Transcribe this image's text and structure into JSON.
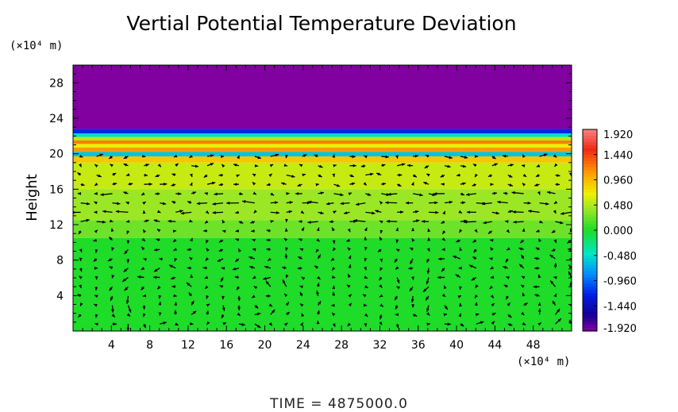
{
  "chart_data": {
    "type": "heatmap",
    "title": "Vertial Potential Temperature Deviation",
    "ylabel": "Height",
    "y_unit": "(×10⁴ m)",
    "x_unit": "(×10⁴ m)",
    "xlim": [
      0,
      52
    ],
    "ylim": [
      0,
      30
    ],
    "x_ticks": [
      4,
      8,
      12,
      16,
      20,
      24,
      28,
      32,
      36,
      40,
      44,
      48
    ],
    "y_ticks": [
      4,
      8,
      12,
      16,
      20,
      24,
      28
    ],
    "colorbar": {
      "min": -1.92,
      "max": 1.92,
      "tick_values": [
        1.92,
        1.44,
        0.96,
        0.48,
        0.0,
        -0.48,
        -0.96,
        -1.44,
        -1.92
      ],
      "tick_labels": [
        "1.920",
        "1.440",
        "0.960",
        "0.480",
        "0.000",
        "-0.480",
        "-0.960",
        "-1.440",
        "-1.920"
      ]
    },
    "field_layers": [
      {
        "y_from": 22.8,
        "y_to": 30.0,
        "value": -1.92
      },
      {
        "y_from": 22.3,
        "y_to": 22.8,
        "value": -1.2
      },
      {
        "y_from": 21.9,
        "y_to": 22.3,
        "value": -0.5
      },
      {
        "y_from": 21.5,
        "y_to": 21.9,
        "value": 0.48
      },
      {
        "y_from": 21.1,
        "y_to": 21.5,
        "value": 1.2
      },
      {
        "y_from": 20.7,
        "y_to": 21.1,
        "value": 0.7
      },
      {
        "y_from": 20.2,
        "y_to": 20.7,
        "value": 1.1
      },
      {
        "y_from": 19.7,
        "y_to": 20.2,
        "value": -0.6
      },
      {
        "y_from": 19.0,
        "y_to": 19.7,
        "value": 0.9
      },
      {
        "y_from": 16.0,
        "y_to": 19.0,
        "value": 0.55
      },
      {
        "y_from": 12.5,
        "y_to": 16.0,
        "value": 0.4
      },
      {
        "y_from": 10.5,
        "y_to": 12.5,
        "value": 0.25
      },
      {
        "y_from": 0.0,
        "y_to": 10.5,
        "value": 0.0
      }
    ],
    "vortex_centers": [
      {
        "x": 9.0,
        "y": 3.2
      },
      {
        "x": 19.5,
        "y": 3.2
      },
      {
        "x": 39.5,
        "y": 3.5
      },
      {
        "x": 47.0,
        "y": 3.2
      }
    ],
    "vector_field": "wind vectors plotted over the shaded field",
    "legend_placement": "right",
    "grid": false,
    "footer": "TIME  =  4875000.0"
  }
}
